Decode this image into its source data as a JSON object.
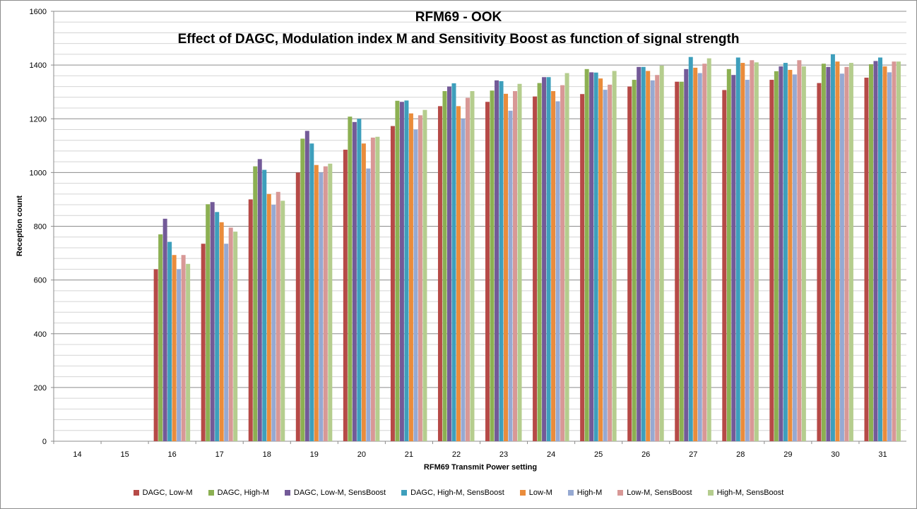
{
  "chart_data": {
    "type": "bar",
    "title": "RFM69 - OOK",
    "subtitle": "Effect of DAGC, Modulation index M and Sensitivity Boost as function of signal strength",
    "xlabel": "RFM69 Transmit Power setting",
    "ylabel": "Reception count",
    "ylim": [
      0,
      1600
    ],
    "y_ticks": [
      0,
      200,
      400,
      600,
      800,
      1000,
      1200,
      1400,
      1600
    ],
    "grid": true,
    "legend_position": "bottom",
    "categories": [
      "14",
      "15",
      "16",
      "17",
      "18",
      "19",
      "20",
      "21",
      "22",
      "23",
      "24",
      "25",
      "26",
      "27",
      "28",
      "29",
      "30",
      "31"
    ],
    "series": [
      {
        "name": "DAGC, Low-M",
        "color": "#b64a47",
        "values": [
          0,
          0,
          640,
          735,
          900,
          1000,
          1085,
          1173,
          1247,
          1263,
          1283,
          1292,
          1320,
          1338,
          1307,
          1345,
          1333,
          1353
        ]
      },
      {
        "name": "DAGC, High-M",
        "color": "#8cb052",
        "values": [
          0,
          0,
          770,
          882,
          1023,
          1126,
          1208,
          1267,
          1303,
          1305,
          1333,
          1385,
          1345,
          1338,
          1385,
          1377,
          1405,
          1403
        ]
      },
      {
        "name": "DAGC, Low-M, SensBoost",
        "color": "#735a98",
        "values": [
          0,
          0,
          828,
          890,
          1050,
          1155,
          1188,
          1263,
          1320,
          1343,
          1355,
          1373,
          1393,
          1385,
          1363,
          1395,
          1393,
          1415
        ]
      },
      {
        "name": "DAGC, High-M, SensBoost",
        "color": "#3e9fbc",
        "values": [
          0,
          0,
          742,
          853,
          1010,
          1108,
          1200,
          1268,
          1332,
          1340,
          1355,
          1372,
          1393,
          1430,
          1428,
          1408,
          1440,
          1428
        ]
      },
      {
        "name": "Low-M",
        "color": "#ea8c3b",
        "values": [
          0,
          0,
          693,
          815,
          920,
          1028,
          1108,
          1220,
          1247,
          1293,
          1303,
          1350,
          1378,
          1390,
          1408,
          1382,
          1413,
          1395
        ]
      },
      {
        "name": "High-M",
        "color": "#96a9d2",
        "values": [
          0,
          0,
          640,
          735,
          880,
          1000,
          1015,
          1160,
          1200,
          1230,
          1265,
          1308,
          1343,
          1370,
          1345,
          1365,
          1368,
          1373
        ]
      },
      {
        "name": "Low-M, SensBoost",
        "color": "#d89896",
        "values": [
          0,
          0,
          693,
          795,
          928,
          1023,
          1130,
          1213,
          1278,
          1303,
          1325,
          1327,
          1363,
          1405,
          1418,
          1418,
          1393,
          1413
        ]
      },
      {
        "name": "High-M, SensBoost",
        "color": "#b5cd8e",
        "values": [
          0,
          0,
          660,
          780,
          895,
          1033,
          1133,
          1233,
          1303,
          1330,
          1370,
          1378,
          1398,
          1425,
          1410,
          1395,
          1408,
          1413
        ]
      }
    ]
  }
}
